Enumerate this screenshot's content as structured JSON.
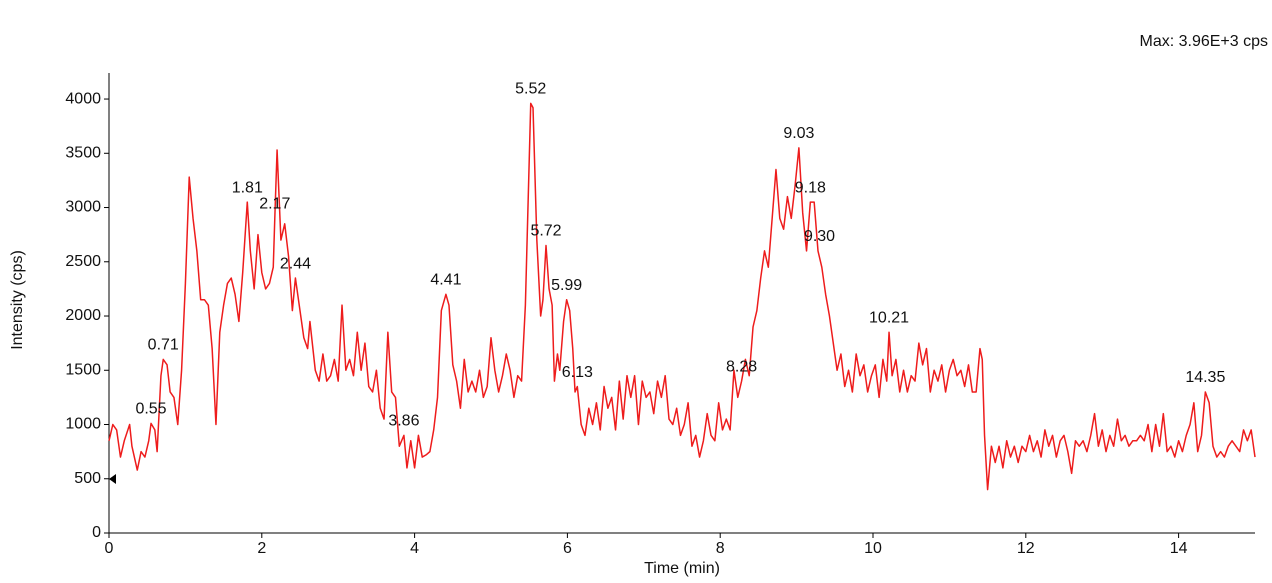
{
  "chart_data": {
    "type": "line",
    "max_label": "Max: 3.96E+3 cps",
    "x_label": "Time (min)",
    "y_label": "Intensity (cps)",
    "color": "#ee1c1c",
    "xlim": [
      0,
      15
    ],
    "xticks": [
      0,
      2,
      4,
      6,
      8,
      10,
      12,
      14
    ],
    "ylim": [
      0,
      4240
    ],
    "yticks": [
      0,
      500,
      1000,
      1500,
      2000,
      2500,
      3000,
      3500,
      4000
    ],
    "x": [
      0,
      0.05,
      0.1,
      0.15,
      0.2,
      0.27,
      0.3,
      0.37,
      0.42,
      0.47,
      0.52,
      0.55,
      0.6,
      0.63,
      0.68,
      0.71,
      0.76,
      0.8,
      0.85,
      0.9,
      0.95,
      1.0,
      1.05,
      1.1,
      1.15,
      1.2,
      1.25,
      1.3,
      1.35,
      1.4,
      1.45,
      1.5,
      1.55,
      1.6,
      1.65,
      1.7,
      1.75,
      1.81,
      1.85,
      1.9,
      1.95,
      2.0,
      2.05,
      2.1,
      2.15,
      2.17,
      2.2,
      2.25,
      2.3,
      2.35,
      2.4,
      2.44,
      2.5,
      2.55,
      2.6,
      2.63,
      2.7,
      2.75,
      2.8,
      2.85,
      2.9,
      2.95,
      3.0,
      3.05,
      3.1,
      3.15,
      3.2,
      3.25,
      3.3,
      3.35,
      3.4,
      3.45,
      3.5,
      3.55,
      3.6,
      3.65,
      3.7,
      3.75,
      3.8,
      3.86,
      3.9,
      3.95,
      4.0,
      4.05,
      4.1,
      4.15,
      4.2,
      4.25,
      4.3,
      4.35,
      4.41,
      4.45,
      4.5,
      4.55,
      4.6,
      4.65,
      4.7,
      4.75,
      4.8,
      4.85,
      4.9,
      4.95,
      5.0,
      5.05,
      5.1,
      5.15,
      5.2,
      5.25,
      5.3,
      5.35,
      5.4,
      5.45,
      5.52,
      5.55,
      5.6,
      5.65,
      5.68,
      5.72,
      5.76,
      5.8,
      5.83,
      5.87,
      5.9,
      5.95,
      5.99,
      6.03,
      6.07,
      6.1,
      6.13,
      6.18,
      6.23,
      6.28,
      6.33,
      6.38,
      6.43,
      6.48,
      6.53,
      6.58,
      6.63,
      6.68,
      6.73,
      6.78,
      6.83,
      6.88,
      6.93,
      6.98,
      7.03,
      7.08,
      7.13,
      7.18,
      7.23,
      7.28,
      7.33,
      7.38,
      7.43,
      7.48,
      7.53,
      7.58,
      7.63,
      7.68,
      7.73,
      7.78,
      7.83,
      7.88,
      7.93,
      7.98,
      8.03,
      8.08,
      8.13,
      8.18,
      8.23,
      8.28,
      8.33,
      8.38,
      8.43,
      8.48,
      8.53,
      8.58,
      8.63,
      8.68,
      8.73,
      8.78,
      8.83,
      8.88,
      8.93,
      8.98,
      9.03,
      9.08,
      9.13,
      9.18,
      9.23,
      9.28,
      9.33,
      9.38,
      9.43,
      9.48,
      9.53,
      9.58,
      9.63,
      9.68,
      9.73,
      9.78,
      9.83,
      9.88,
      9.93,
      9.98,
      10.03,
      10.08,
      10.13,
      10.18,
      10.21,
      10.25,
      10.3,
      10.35,
      10.4,
      10.45,
      10.5,
      10.55,
      10.6,
      10.65,
      10.7,
      10.75,
      10.8,
      10.85,
      10.9,
      10.95,
      11.0,
      11.05,
      11.1,
      11.15,
      11.2,
      11.25,
      11.3,
      11.35,
      11.4,
      11.43,
      11.46,
      11.5,
      11.55,
      11.6,
      11.65,
      11.7,
      11.75,
      11.8,
      11.85,
      11.9,
      11.95,
      12.0,
      12.05,
      12.1,
      12.15,
      12.2,
      12.25,
      12.3,
      12.35,
      12.4,
      12.45,
      12.5,
      12.55,
      12.6,
      12.65,
      12.7,
      12.75,
      12.8,
      12.85,
      12.9,
      12.95,
      13.0,
      13.05,
      13.1,
      13.15,
      13.2,
      13.25,
      13.3,
      13.35,
      13.4,
      13.45,
      13.5,
      13.55,
      13.6,
      13.65,
      13.7,
      13.75,
      13.8,
      13.85,
      13.9,
      13.95,
      14.0,
      14.05,
      14.1,
      14.15,
      14.2,
      14.25,
      14.3,
      14.35,
      14.4,
      14.45,
      14.5,
      14.55,
      14.6,
      14.65,
      14.7,
      14.75,
      14.8,
      14.85,
      14.9,
      14.95,
      15.0
    ],
    "values": [
      850,
      1000,
      950,
      700,
      850,
      1000,
      800,
      580,
      750,
      700,
      850,
      1010,
      950,
      750,
      1450,
      1600,
      1550,
      1300,
      1250,
      1000,
      1500,
      2300,
      3280,
      2900,
      2600,
      2150,
      2150,
      2100,
      1700,
      1000,
      1850,
      2100,
      2300,
      2350,
      2200,
      1950,
      2400,
      3050,
      2600,
      2250,
      2750,
      2400,
      2250,
      2300,
      2450,
      2900,
      3530,
      2700,
      2850,
      2550,
      2050,
      2350,
      2050,
      1800,
      1700,
      1950,
      1500,
      1400,
      1650,
      1400,
      1450,
      1600,
      1400,
      2100,
      1500,
      1600,
      1450,
      1850,
      1500,
      1750,
      1350,
      1300,
      1500,
      1150,
      1050,
      1850,
      1300,
      1250,
      800,
      900,
      600,
      850,
      600,
      900,
      700,
      720,
      750,
      950,
      1250,
      2050,
      2200,
      2100,
      1550,
      1400,
      1150,
      1600,
      1300,
      1400,
      1300,
      1500,
      1250,
      1350,
      1800,
      1500,
      1300,
      1450,
      1650,
      1500,
      1250,
      1450,
      1400,
      2100,
      3960,
      3920,
      2700,
      2000,
      2150,
      2650,
      2250,
      2100,
      1400,
      1650,
      1500,
      1950,
      2150,
      2050,
      1700,
      1300,
      1350,
      1000,
      900,
      1150,
      1000,
      1200,
      950,
      1350,
      1150,
      1250,
      950,
      1400,
      1050,
      1450,
      1250,
      1450,
      1000,
      1400,
      1250,
      1300,
      1100,
      1400,
      1250,
      1450,
      1050,
      1000,
      1150,
      900,
      1000,
      1200,
      800,
      900,
      700,
      850,
      1100,
      900,
      850,
      1200,
      950,
      1050,
      950,
      1500,
      1250,
      1400,
      1600,
      1450,
      1900,
      2050,
      2350,
      2600,
      2450,
      2900,
      3350,
      2900,
      2800,
      3100,
      2900,
      3200,
      3550,
      2950,
      2600,
      3050,
      3050,
      2600,
      2450,
      2200,
      2000,
      1750,
      1500,
      1650,
      1350,
      1500,
      1300,
      1650,
      1450,
      1550,
      1300,
      1450,
      1550,
      1250,
      1600,
      1400,
      1850,
      1450,
      1600,
      1300,
      1500,
      1300,
      1450,
      1400,
      1750,
      1550,
      1700,
      1300,
      1500,
      1400,
      1550,
      1300,
      1500,
      1600,
      1450,
      1500,
      1350,
      1550,
      1300,
      1300,
      1700,
      1600,
      900,
      400,
      800,
      650,
      800,
      600,
      850,
      700,
      800,
      650,
      800,
      750,
      900,
      750,
      850,
      700,
      950,
      800,
      900,
      700,
      850,
      900,
      750,
      550,
      850,
      800,
      850,
      750,
      900,
      1100,
      800,
      950,
      750,
      900,
      800,
      1050,
      850,
      900,
      800,
      850,
      850,
      900,
      850,
      1000,
      750,
      1000,
      800,
      1100,
      750,
      800,
      700,
      850,
      750,
      900,
      1000,
      1200,
      750,
      900,
      1300,
      1200,
      800,
      700,
      750,
      700,
      800,
      850,
      800,
      750,
      950,
      850,
      950,
      700
    ],
    "peak_labels": [
      {
        "value": 0.55,
        "label": "0.55"
      },
      {
        "value": 0.71,
        "label": "0.71"
      },
      {
        "value": 1.81,
        "label": "1.81"
      },
      {
        "value": 2.17,
        "label": "2.17"
      },
      {
        "value": 2.44,
        "label": "2.44"
      },
      {
        "value": 3.86,
        "label": "3.86"
      },
      {
        "value": 4.41,
        "label": "4.41"
      },
      {
        "value": 5.52,
        "label": "5.52"
      },
      {
        "value": 5.72,
        "label": "5.72"
      },
      {
        "value": 5.99,
        "label": "5.99"
      },
      {
        "value": 6.13,
        "label": "6.13"
      },
      {
        "value": 8.28,
        "label": "8.28"
      },
      {
        "value": 9.03,
        "label": "9.03"
      },
      {
        "value": 9.18,
        "label": "9.18"
      },
      {
        "value": 9.3,
        "label": "9.30"
      },
      {
        "value": 10.21,
        "label": "10.21"
      },
      {
        "value": 14.35,
        "label": "14.35"
      }
    ]
  }
}
